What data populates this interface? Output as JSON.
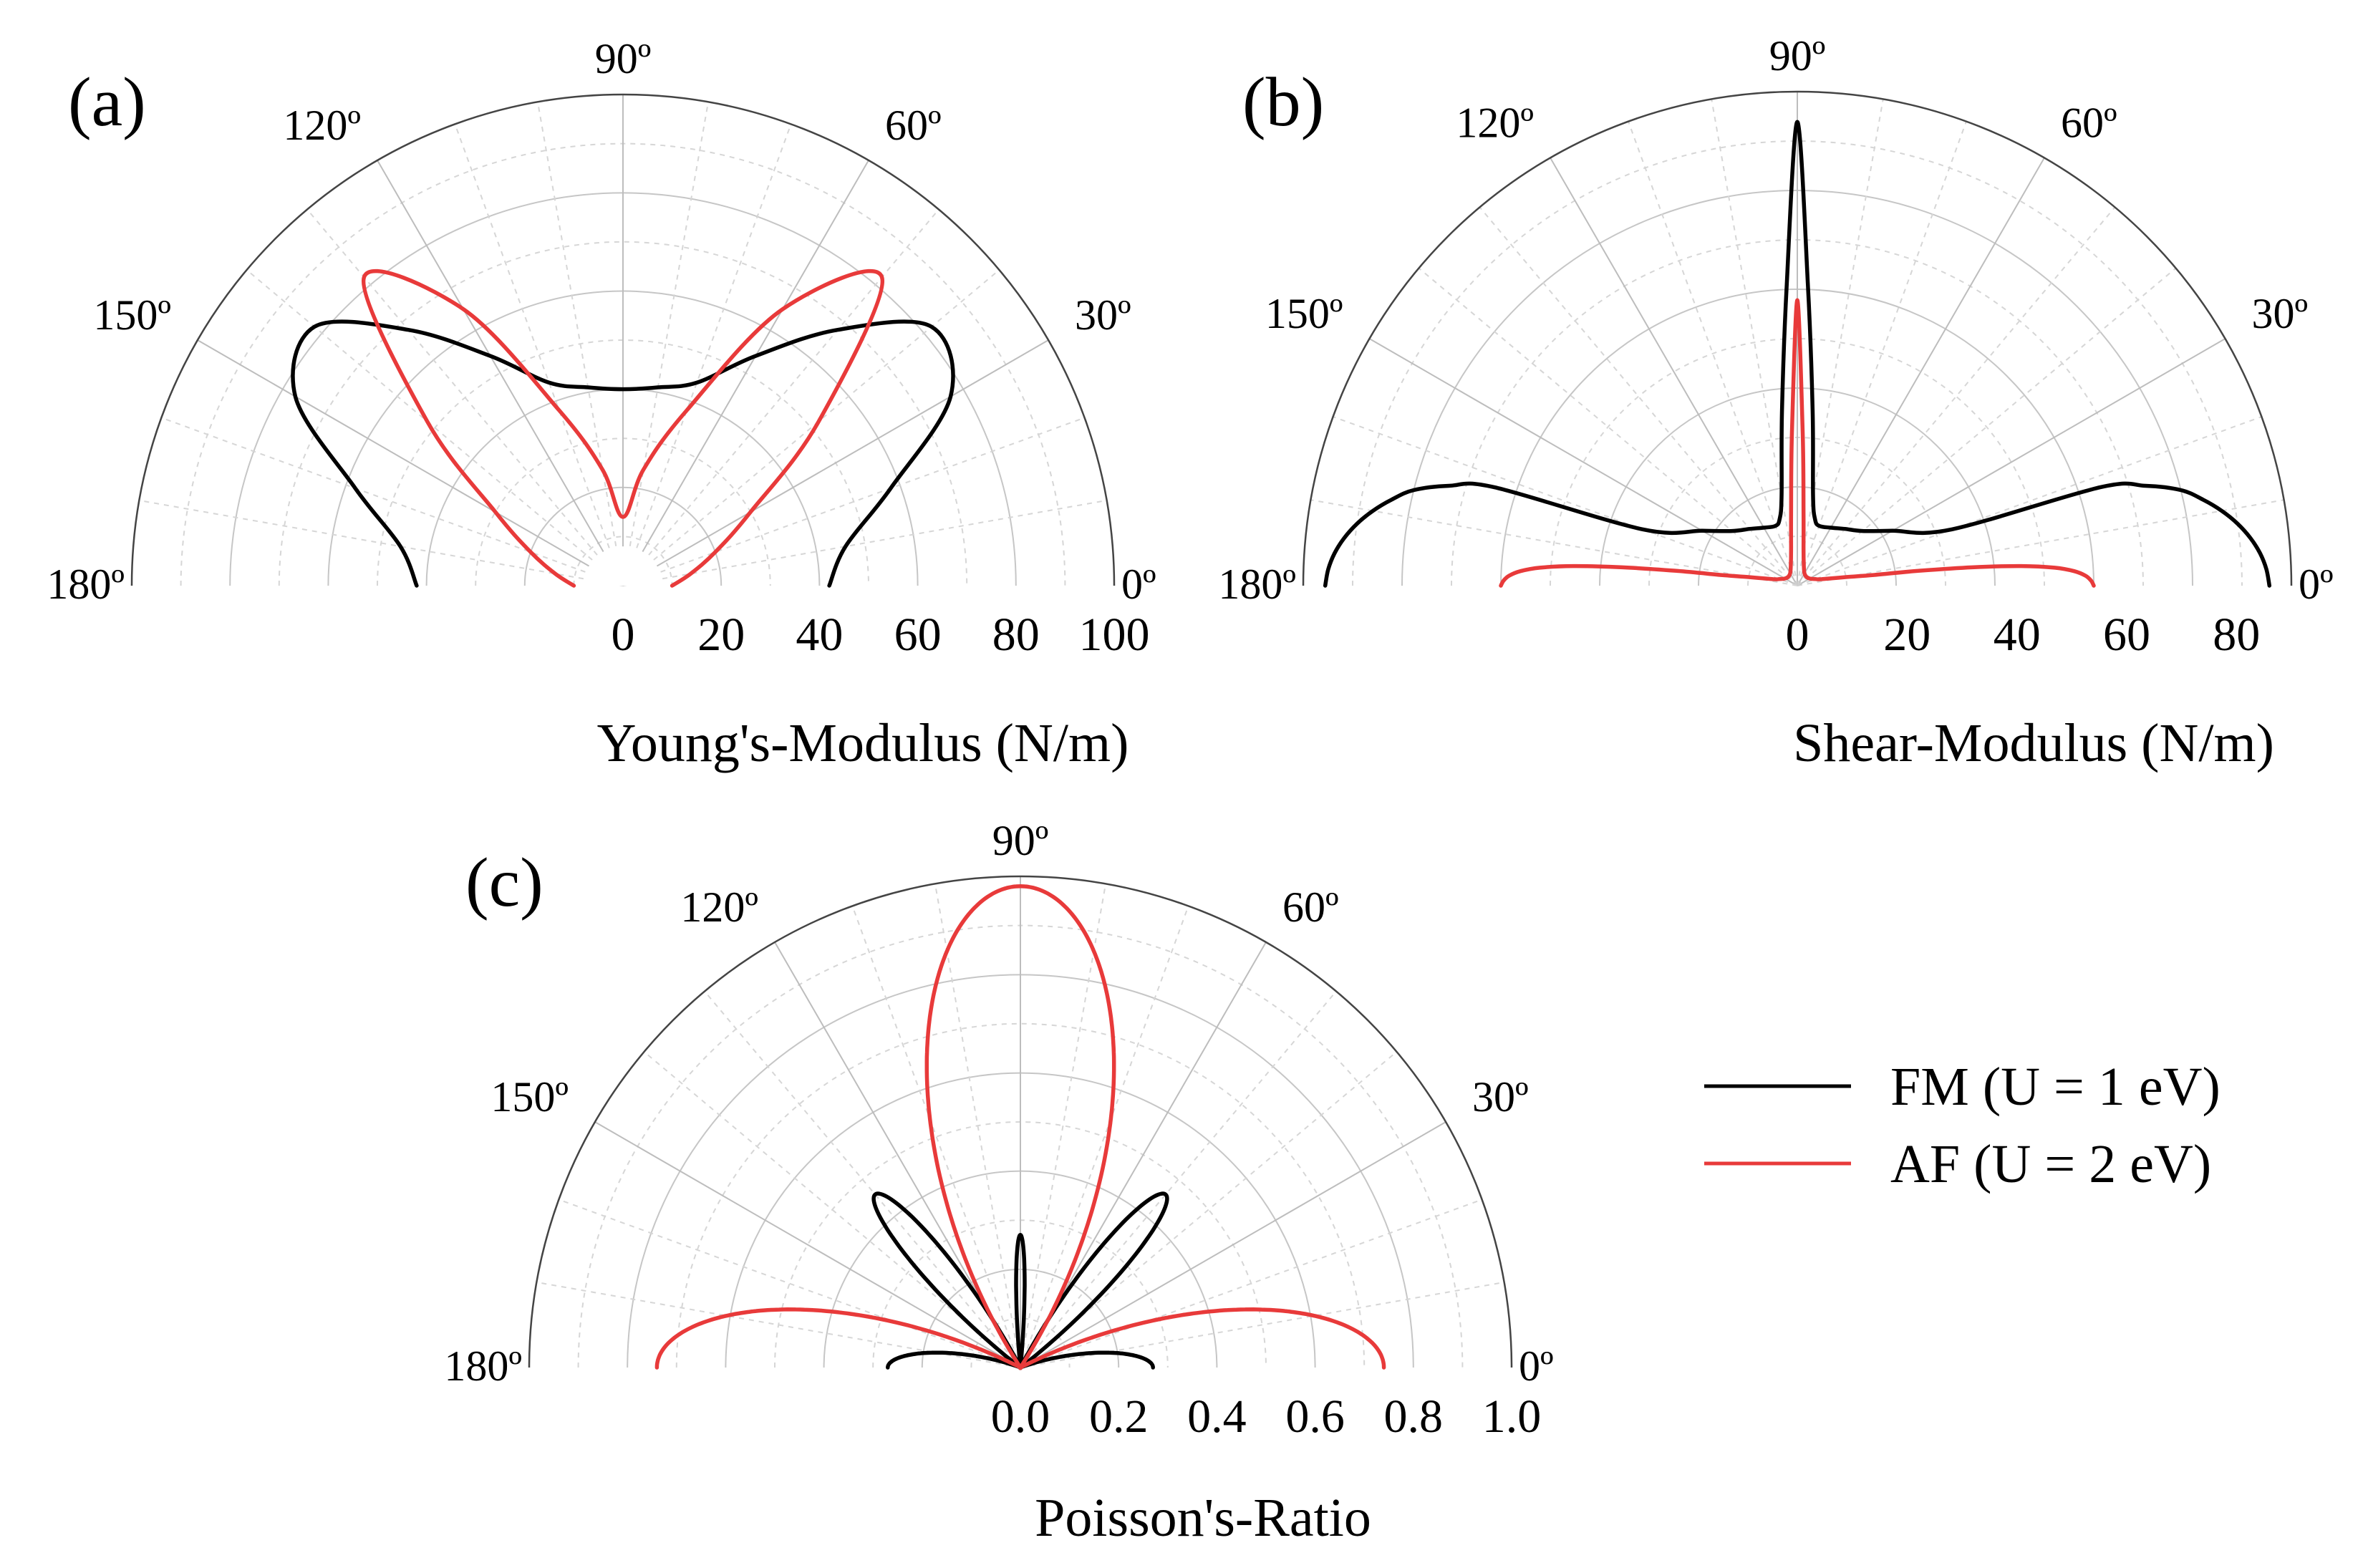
{
  "chart_data": [
    {
      "id": "a",
      "type": "polar-line",
      "panel_label": "(a)",
      "title": "",
      "angle_range_deg": [
        0,
        180
      ],
      "angle_labels": [
        "0º",
        "30º",
        "60º",
        "90º",
        "120º",
        "150º",
        "180º"
      ],
      "radial_range": [
        0,
        100
      ],
      "radial_ticks": [
        "0",
        "20",
        "40",
        "60",
        "80",
        "100"
      ],
      "xlabel": "Young's-Modulus (N/m)",
      "inner_hole_radius": 8,
      "series": [
        {
          "name": "FM (U = 1 eV)",
          "color": "#000000",
          "theta": [
            0,
            10,
            20,
            30,
            40,
            50,
            60,
            70,
            80,
            90
          ],
          "r": [
            42,
            46,
            58,
            77,
            82,
            68,
            54,
            44,
            41,
            40
          ]
        },
        {
          "name": "AF (U = 2 eV)",
          "color": "#e83a3a",
          "theta": [
            0,
            10,
            20,
            30,
            40,
            50,
            60,
            70,
            80,
            90
          ],
          "r": [
            10,
            14,
            20,
            30,
            52,
            82,
            65,
            38,
            24,
            14
          ]
        }
      ]
    },
    {
      "id": "b",
      "type": "polar-line",
      "panel_label": "(b)",
      "title": "",
      "angle_range_deg": [
        0,
        180
      ],
      "angle_labels": [
        "0º",
        "30º",
        "60º",
        "90º",
        "120º",
        "150º",
        "180º"
      ],
      "radial_range": [
        0,
        90
      ],
      "radial_ticks": [
        "0",
        "20",
        "40",
        "60",
        "80"
      ],
      "xlabel": "Shear-Modulus (N/m)",
      "inner_hole_radius": 0,
      "series": [
        {
          "name": "FM (U = 1 eV)",
          "color": "#000000",
          "theta": [
            0,
            2,
            4,
            6,
            8,
            10,
            12,
            14,
            16,
            18,
            20,
            30,
            40,
            50,
            60,
            70,
            75,
            80,
            85,
            88,
            90
          ],
          "r": [
            86,
            85.5,
            84.5,
            83,
            81,
            78.5,
            75.5,
            72,
            66,
            58,
            30,
            20,
            15.5,
            13.5,
            12.2,
            11.6,
            12.5,
            16.5,
            32,
            55,
            84.5
          ]
        },
        {
          "name": "AF (U = 2 eV)",
          "color": "#e83a3a",
          "theta": [
            0,
            1,
            2,
            3,
            4,
            5,
            6,
            7,
            8,
            10,
            15,
            20,
            30,
            45,
            60,
            70,
            80,
            85,
            88,
            90
          ],
          "r": [
            54,
            53.5,
            52.5,
            50.5,
            47,
            41,
            32,
            22,
            14,
            9,
            4.6,
            3.5,
            2.6,
            2.3,
            2.6,
            3.5,
            6.5,
            13,
            28,
            52
          ]
        }
      ]
    },
    {
      "id": "c",
      "type": "polar-line",
      "panel_label": "(c)",
      "title": "",
      "angle_range_deg": [
        0,
        180
      ],
      "angle_labels": [
        "0º",
        "30º",
        "60º",
        "90º",
        "120º",
        "150º",
        "180º"
      ],
      "radial_range": [
        0,
        1.0
      ],
      "radial_ticks": [
        "0.0",
        "0.2",
        "0.4",
        "0.6",
        "0.8",
        "1.0"
      ],
      "xlabel": "Poisson's-Ratio",
      "inner_hole_radius": 0,
      "series": [
        {
          "name": "FM (U = 1 eV)",
          "color": "#000000",
          "lobes": [
            {
              "center_deg": 0,
              "peak": 0.27,
              "half_width_deg": 21,
              "shape": "cos^1.4"
            },
            {
              "center_deg": 50,
              "peak": 0.46,
              "half_width_deg": 13,
              "shape": "cos^1.4"
            },
            {
              "center_deg": 90,
              "peak": 0.27,
              "half_width_deg": 6,
              "shape": "cos^1.4"
            }
          ]
        },
        {
          "name": "AF (U = 2 eV)",
          "color": "#e83a3a",
          "lobes": [
            {
              "center_deg": 0,
              "peak": 0.74,
              "half_width_deg": 27,
              "shape": "cos^1.1"
            },
            {
              "center_deg": 90,
              "peak": 0.98,
              "half_width_deg": 33,
              "shape": "cos^1.1"
            }
          ]
        }
      ],
      "legend": {
        "placement": "right",
        "entries": [
          {
            "label": "FM (U = 1 eV)",
            "color": "#000000"
          },
          {
            "label": "AF (U = 2 eV)",
            "color": "#e83a3a"
          }
        ]
      }
    }
  ]
}
